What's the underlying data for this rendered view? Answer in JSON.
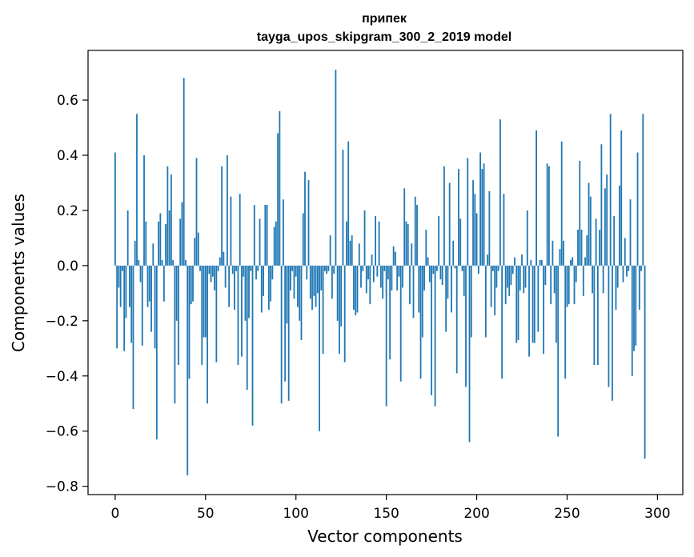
{
  "chart_data": {
    "type": "bar",
    "title_line1": "припек",
    "title_line2": "tayga_upos_skipgram_300_2_2019 model",
    "xlabel": "Vector components",
    "ylabel": "Components values",
    "xlim": [
      -15,
      314
    ],
    "ylim": [
      -0.83,
      0.78
    ],
    "x_ticks": [
      0,
      50,
      100,
      150,
      200,
      250,
      300
    ],
    "x_tick_labels": [
      "0",
      "50",
      "100",
      "150",
      "200",
      "250",
      "300"
    ],
    "y_ticks": [
      -0.8,
      -0.6,
      -0.4,
      -0.2,
      0.0,
      0.2,
      0.4,
      0.6
    ],
    "y_tick_labels": [
      "−0.8",
      "−0.6",
      "−0.4",
      "−0.2",
      "0.0",
      "0.2",
      "0.4",
      "0.6"
    ],
    "bar_color": "#1f77b4",
    "values": [
      0.41,
      -0.3,
      -0.08,
      -0.15,
      -0.02,
      -0.31,
      -0.19,
      0.2,
      -0.15,
      -0.28,
      -0.52,
      0.09,
      0.55,
      0.02,
      -0.06,
      -0.29,
      0.4,
      0.16,
      -0.15,
      -0.13,
      -0.24,
      0.08,
      -0.3,
      -0.63,
      0.16,
      0.19,
      0.02,
      -0.13,
      0.15,
      0.36,
      0.2,
      0.33,
      0.02,
      -0.5,
      -0.2,
      -0.36,
      0.17,
      0.23,
      0.68,
      0.02,
      -0.76,
      -0.41,
      -0.14,
      -0.13,
      0.1,
      0.39,
      0.12,
      -0.02,
      -0.36,
      -0.26,
      -0.26,
      -0.5,
      -0.03,
      -0.06,
      -0.04,
      -0.09,
      -0.35,
      -0.02,
      0.03,
      0.36,
      0.05,
      -0.08,
      0.4,
      -0.15,
      0.25,
      -0.03,
      -0.16,
      -0.02,
      -0.36,
      0.26,
      -0.33,
      -0.04,
      -0.2,
      -0.45,
      -0.19,
      -0.02,
      -0.58,
      0.22,
      -0.05,
      -0.02,
      0.17,
      -0.17,
      -0.11,
      0.22,
      0.22,
      -0.16,
      -0.13,
      -0.05,
      0.14,
      0.16,
      0.48,
      0.56,
      -0.5,
      0.24,
      -0.42,
      -0.21,
      -0.49,
      -0.09,
      -0.02,
      -0.12,
      -0.04,
      -0.15,
      -0.2,
      -0.27,
      0.19,
      0.34,
      -0.05,
      0.31,
      -0.12,
      -0.16,
      -0.11,
      -0.15,
      -0.1,
      -0.6,
      -0.09,
      -0.32,
      -0.02,
      -0.03,
      -0.02,
      0.11,
      -0.12,
      -0.03,
      0.71,
      -0.2,
      -0.32,
      -0.22,
      0.42,
      -0.35,
      0.16,
      0.45,
      0.09,
      0.11,
      -0.16,
      -0.18,
      -0.17,
      0.08,
      -0.08,
      -0.02,
      0.2,
      -0.1,
      -0.05,
      -0.14,
      0.04,
      -0.06,
      0.18,
      -0.04,
      0.16,
      -0.08,
      -0.12,
      -0.02,
      -0.51,
      -0.05,
      -0.34,
      -0.09,
      0.07,
      0.05,
      -0.09,
      -0.04,
      -0.42,
      -0.08,
      0.28,
      0.16,
      0.15,
      -0.14,
      0.08,
      -0.19,
      0.25,
      0.22,
      -0.17,
      -0.41,
      -0.26,
      -0.09,
      0.13,
      0.03,
      -0.06,
      -0.47,
      -0.03,
      -0.51,
      -0.02,
      0.18,
      -0.05,
      -0.07,
      0.36,
      -0.24,
      -0.12,
      0.3,
      -0.17,
      0.09,
      -0.01,
      -0.39,
      0.35,
      0.17,
      -0.02,
      -0.11,
      -0.44,
      0.39,
      -0.64,
      -0.26,
      0.31,
      0.26,
      0.19,
      -0.03,
      0.41,
      0.35,
      0.37,
      -0.26,
      0.04,
      0.27,
      -0.15,
      -0.02,
      -0.18,
      -0.08,
      -0.02,
      0.53,
      -0.41,
      0.26,
      -0.14,
      -0.08,
      -0.11,
      -0.07,
      -0.03,
      0.03,
      -0.28,
      -0.27,
      -0.09,
      0.04,
      -0.1,
      -0.08,
      0.2,
      -0.33,
      0.02,
      -0.28,
      -0.28,
      0.49,
      -0.24,
      0.02,
      0.02,
      -0.32,
      -0.07,
      0.37,
      0.36,
      -0.14,
      0.09,
      -0.1,
      -0.28,
      -0.62,
      0.06,
      0.45,
      0.09,
      -0.41,
      -0.15,
      -0.14,
      0.02,
      0.03,
      -0.14,
      -0.06,
      0.13,
      0.38,
      0.13,
      -0.11,
      0.03,
      0.11,
      0.3,
      0.25,
      -0.1,
      -0.36,
      0.17,
      -0.36,
      0.13,
      0.44,
      -0.1,
      0.28,
      0.33,
      -0.44,
      0.55,
      -0.49,
      0.18,
      -0.16,
      -0.08,
      0.29,
      0.49,
      -0.06,
      0.1,
      -0.04,
      -0.02,
      0.24,
      -0.4,
      -0.31,
      -0.29,
      0.41,
      -0.16,
      -0.02,
      0.55,
      -0.7
    ]
  }
}
